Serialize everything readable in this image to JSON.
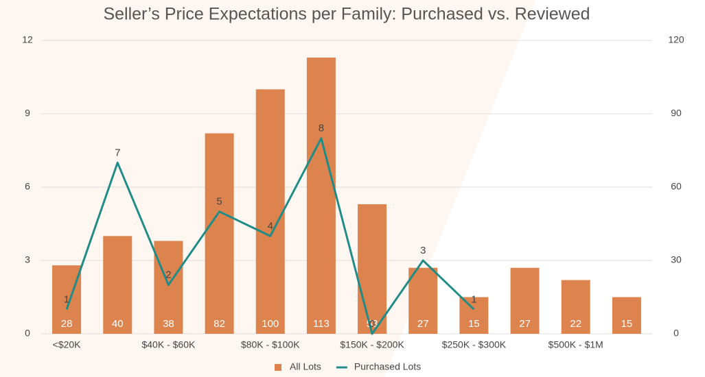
{
  "chart_data": {
    "type": "bar",
    "title": "Seller’s Price Expectations per Family:  Purchased vs. Reviewed",
    "categories": [
      "<$20K",
      null,
      "$40K - $60K",
      null,
      "$80K - $100K",
      null,
      "$150K - $200K",
      null,
      "$250K - $300K",
      null,
      "$500K - $1M",
      null
    ],
    "series": [
      {
        "name": "All Lots",
        "type": "bar",
        "axis": "y2",
        "color": "#dd834e",
        "values": [
          28,
          40,
          38,
          82,
          100,
          113,
          53,
          27,
          15,
          27,
          22,
          15
        ]
      },
      {
        "name": "Purchased Lots",
        "type": "line",
        "axis": "y",
        "color": "#1f8c88",
        "values": [
          1,
          7,
          2,
          5,
          4,
          8,
          0,
          3,
          1,
          null,
          null,
          null
        ]
      }
    ],
    "ylim": [
      0,
      12
    ],
    "yticks": [
      0,
      3,
      6,
      9,
      12
    ],
    "y2lim": [
      0,
      120
    ],
    "y2ticks": [
      0,
      30,
      60,
      90,
      120
    ],
    "grid": true,
    "legend": "bottom"
  }
}
